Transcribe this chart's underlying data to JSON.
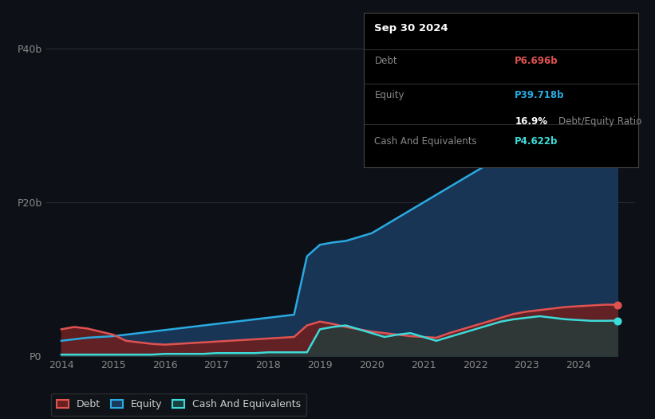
{
  "background_color": "#0d1117",
  "plot_bg_color": "#0d1117",
  "grid_color": "#2a2d35",
  "tooltip": {
    "date": "Sep 30 2024",
    "debt_label": "Debt",
    "debt_value": "P6.696b",
    "equity_label": "Equity",
    "equity_value": "P39.718b",
    "ratio_value": "16.9%",
    "ratio_label": "Debt/Equity Ratio",
    "cash_label": "Cash And Equivalents",
    "cash_value": "P4.622b"
  },
  "debt_color": "#e05252",
  "equity_color": "#29aae1",
  "cash_color": "#3ddbd9",
  "debt_fill": "#6b2020",
  "equity_fill": "#1a3a5c",
  "cash_fill": "#1a4040",
  "years": [
    2014,
    2014.25,
    2014.5,
    2014.75,
    2015,
    2015.25,
    2015.5,
    2015.75,
    2016,
    2016.25,
    2016.5,
    2016.75,
    2017,
    2017.25,
    2017.5,
    2017.75,
    2018,
    2018.25,
    2018.5,
    2018.75,
    2019,
    2019.25,
    2019.5,
    2019.75,
    2020,
    2020.25,
    2020.5,
    2020.75,
    2021,
    2021.25,
    2021.5,
    2021.75,
    2022,
    2022.25,
    2022.5,
    2022.75,
    2023,
    2023.25,
    2023.5,
    2023.75,
    2024,
    2024.25,
    2024.5,
    2024.75
  ],
  "debt": [
    3.5,
    3.8,
    3.6,
    3.2,
    2.8,
    2.0,
    1.8,
    1.6,
    1.5,
    1.6,
    1.7,
    1.8,
    1.9,
    2.0,
    2.1,
    2.2,
    2.3,
    2.4,
    2.5,
    4.0,
    4.5,
    4.2,
    3.8,
    3.5,
    3.2,
    3.0,
    2.8,
    2.6,
    2.5,
    2.4,
    3.0,
    3.5,
    4.0,
    4.5,
    5.0,
    5.5,
    5.8,
    6.0,
    6.2,
    6.4,
    6.5,
    6.6,
    6.7,
    6.696
  ],
  "equity": [
    2.0,
    2.2,
    2.4,
    2.5,
    2.6,
    2.8,
    3.0,
    3.2,
    3.4,
    3.6,
    3.8,
    4.0,
    4.2,
    4.4,
    4.6,
    4.8,
    5.0,
    5.2,
    5.4,
    13.0,
    14.5,
    14.8,
    15.0,
    15.5,
    16.0,
    17.0,
    18.0,
    19.0,
    20.0,
    21.0,
    22.0,
    23.0,
    24.0,
    25.0,
    26.0,
    27.0,
    28.0,
    30.0,
    32.0,
    34.0,
    36.0,
    37.5,
    39.0,
    39.718
  ],
  "cash": [
    0.2,
    0.2,
    0.2,
    0.2,
    0.2,
    0.2,
    0.2,
    0.2,
    0.3,
    0.3,
    0.3,
    0.3,
    0.4,
    0.4,
    0.4,
    0.4,
    0.5,
    0.5,
    0.5,
    0.5,
    3.5,
    3.8,
    4.0,
    3.5,
    3.0,
    2.5,
    2.8,
    3.0,
    2.5,
    2.0,
    2.5,
    3.0,
    3.5,
    4.0,
    4.5,
    4.8,
    5.0,
    5.2,
    5.0,
    4.8,
    4.7,
    4.6,
    4.6,
    4.622
  ],
  "xlim": [
    2013.7,
    2025.1
  ],
  "ylim": [
    0,
    42
  ],
  "xticks": [
    2014,
    2015,
    2016,
    2017,
    2018,
    2019,
    2020,
    2021,
    2022,
    2023,
    2024
  ]
}
